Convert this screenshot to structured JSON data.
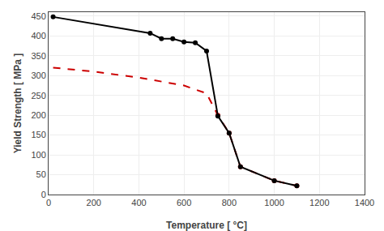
{
  "chart_data": {
    "type": "line",
    "xlabel": "Temperature [ °C]",
    "ylabel": "Yield Strength [ MPa ]",
    "series": [
      {
        "type": "line",
        "color": "#cc0000",
        "line_style": "dashed",
        "x": [
          20,
          200,
          400,
          600,
          700,
          750,
          800,
          850,
          1000,
          1100
        ],
        "values": [
          320,
          310,
          295,
          275,
          255,
          200,
          155,
          70,
          35,
          22
        ]
      },
      {
        "type": "scatter",
        "color": "#cc0000",
        "marker": "circle",
        "x": [
          750,
          800,
          850,
          1000,
          1100
        ],
        "values": [
          200,
          155,
          70,
          35,
          22
        ]
      },
      {
        "type": "line",
        "color": "#000000",
        "line_style": "solid",
        "x": [
          20,
          450,
          500,
          550,
          600,
          650,
          700,
          750,
          800,
          850,
          1000,
          1100
        ],
        "values": [
          448,
          407,
          393,
          393,
          385,
          383,
          362,
          198,
          155,
          70,
          35,
          22
        ]
      },
      {
        "type": "scatter",
        "color": "#000000",
        "marker": "circle",
        "x": [
          20,
          450,
          500,
          550,
          600,
          650,
          700,
          750,
          800,
          850,
          1000,
          1100
        ],
        "values": [
          448,
          407,
          393,
          393,
          385,
          383,
          362,
          198,
          155,
          70,
          35,
          22
        ]
      }
    ],
    "xlim": [
      0,
      1400
    ],
    "ylim": [
      0,
      460
    ],
    "xticks": [
      0,
      200,
      400,
      600,
      800,
      1000,
      1200,
      1400
    ],
    "yticks": [
      0,
      50,
      100,
      150,
      200,
      250,
      300,
      350,
      400,
      450
    ],
    "grid": true
  }
}
